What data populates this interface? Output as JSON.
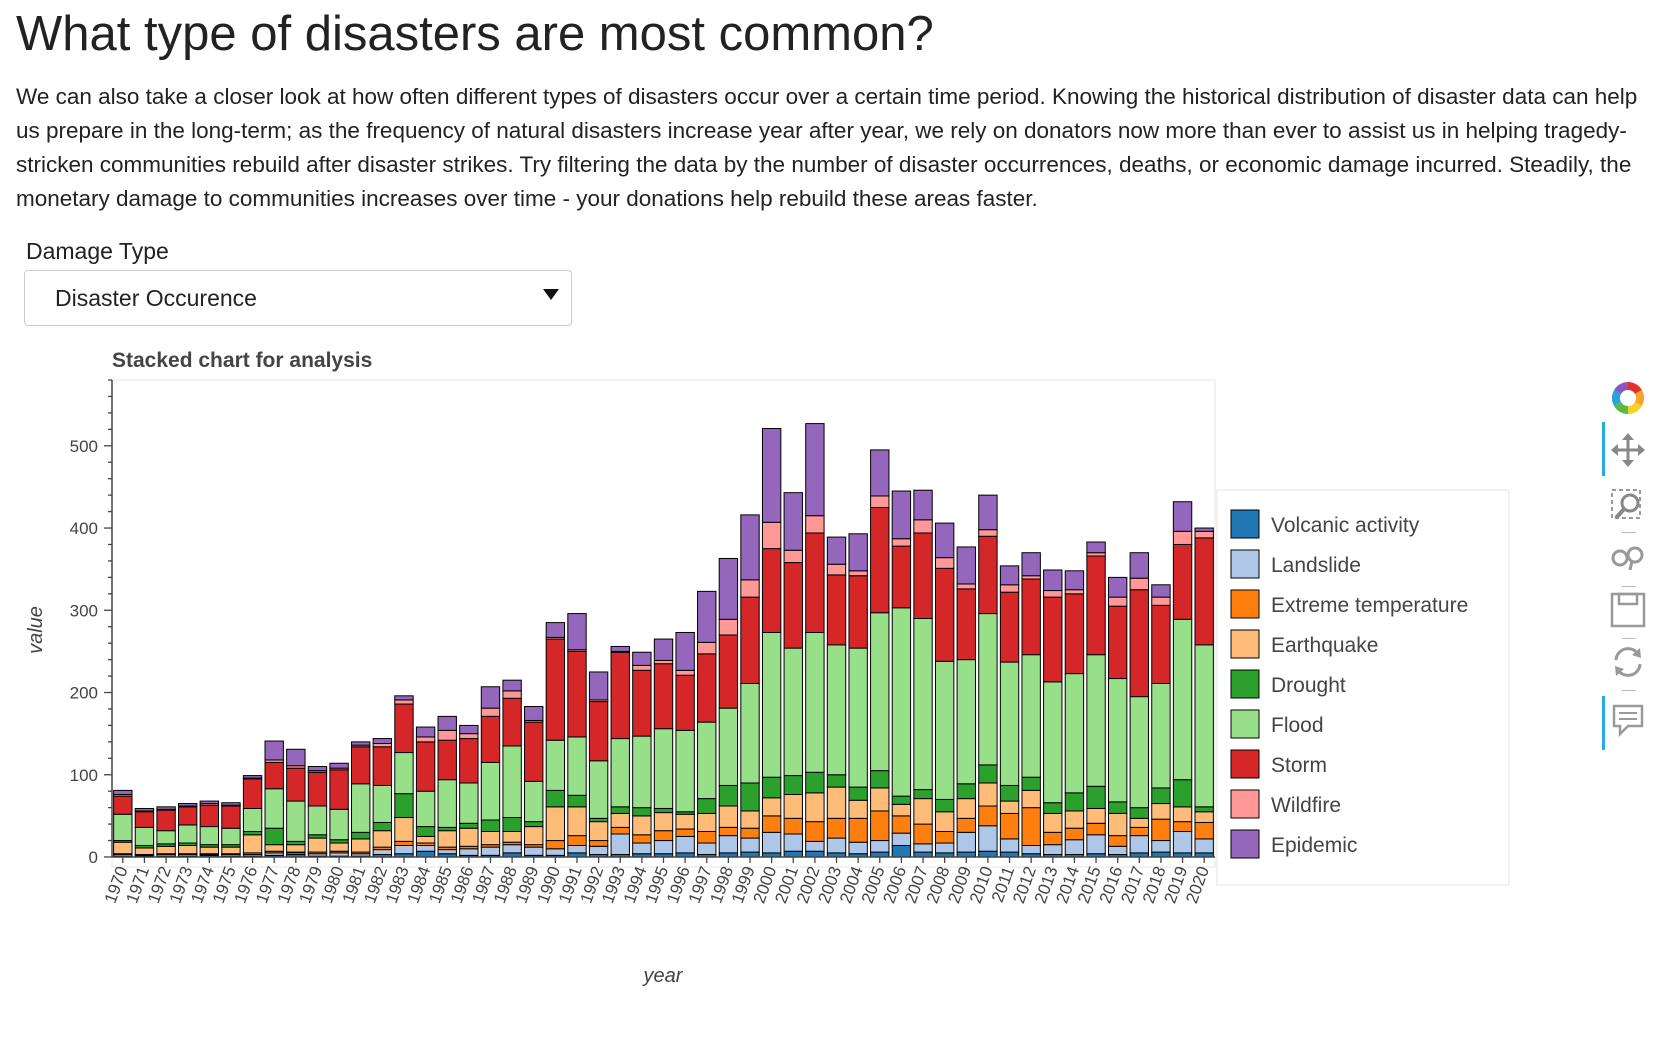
{
  "page": {
    "title": "What type of disasters are most common?",
    "intro": "We can also take a closer look at how often different types of disasters occur over a certain time period. Knowing the historical distribution of disaster data can help us prepare in the long-term; as the frequency of natural disasters increase year after year, we rely on donators now more than ever to assist us in helping tragedy-stricken communities rebuild after disaster strikes. Try filtering the data by the number of disaster occurrences, deaths, or economic damage incurred. Steadily, the monetary damage to communities increases over time - your donations help rebuild these areas faster."
  },
  "filter": {
    "label": "Damage Type",
    "selected": "Disaster Occurence"
  },
  "toolbar": {
    "tools": [
      "bokeh-logo-icon",
      "pan-icon",
      "box-zoom-icon",
      "wheel-zoom-icon",
      "save-icon",
      "reset-icon",
      "hover-icon"
    ]
  },
  "chart_data": {
    "type": "bar",
    "stacked": true,
    "title": "Stacked chart for analysis",
    "xlabel": "year",
    "ylabel": "value",
    "ylim": [
      0,
      580
    ],
    "yticks": [
      0,
      100,
      200,
      300,
      400,
      500
    ],
    "grid": false,
    "legend_position": "right",
    "categories": [
      "1970",
      "1971",
      "1972",
      "1973",
      "1974",
      "1975",
      "1976",
      "1977",
      "1978",
      "1979",
      "1980",
      "1981",
      "1982",
      "1983",
      "1984",
      "1985",
      "1986",
      "1987",
      "1988",
      "1989",
      "1990",
      "1991",
      "1992",
      "1993",
      "1994",
      "1995",
      "1996",
      "1997",
      "1998",
      "1999",
      "2000",
      "2001",
      "2002",
      "2003",
      "2004",
      "2005",
      "2006",
      "2007",
      "2008",
      "2009",
      "2010",
      "2011",
      "2012",
      "2013",
      "2014",
      "2015",
      "2016",
      "2017",
      "2018",
      "2019",
      "2020"
    ],
    "series": [
      {
        "name": "Volcanic activity",
        "color": "#1f77b4",
        "values": [
          1,
          1,
          1,
          1,
          2,
          1,
          1,
          2,
          3,
          1,
          1,
          1,
          3,
          4,
          7,
          4,
          2,
          2,
          5,
          2,
          2,
          5,
          3,
          3,
          4,
          4,
          5,
          3,
          5,
          6,
          5,
          7,
          7,
          5,
          4,
          6,
          14,
          6,
          5,
          6,
          7,
          6,
          4,
          3,
          3,
          4,
          3,
          5,
          6,
          5,
          5
        ]
      },
      {
        "name": "Landslide",
        "color": "#aec7e8",
        "values": [
          2,
          1,
          2,
          2,
          1,
          2,
          2,
          3,
          2,
          3,
          4,
          3,
          6,
          10,
          7,
          5,
          8,
          10,
          10,
          10,
          8,
          9,
          10,
          25,
          13,
          16,
          20,
          14,
          21,
          17,
          25,
          21,
          12,
          18,
          14,
          14,
          15,
          10,
          12,
          24,
          31,
          16,
          10,
          12,
          18,
          23,
          10,
          21,
          14,
          26,
          17
        ]
      },
      {
        "name": "Extreme temperature",
        "color": "#ff7f0e",
        "values": [
          1,
          1,
          1,
          1,
          1,
          1,
          2,
          2,
          1,
          2,
          2,
          2,
          3,
          5,
          3,
          3,
          3,
          3,
          3,
          3,
          10,
          12,
          7,
          8,
          10,
          12,
          9,
          14,
          10,
          12,
          20,
          19,
          24,
          24,
          29,
          36,
          21,
          24,
          14,
          17,
          24,
          31,
          46,
          15,
          14,
          14,
          13,
          10,
          26,
          12,
          20
        ]
      },
      {
        "name": "Earthquake",
        "color": "#ffbb78",
        "values": [
          14,
          8,
          9,
          10,
          8,
          8,
          22,
          8,
          9,
          17,
          10,
          16,
          20,
          29,
          8,
          20,
          22,
          16,
          13,
          22,
          41,
          35,
          23,
          17,
          23,
          22,
          18,
          22,
          26,
          21,
          22,
          29,
          35,
          38,
          22,
          28,
          14,
          31,
          24,
          24,
          28,
          15,
          21,
          23,
          21,
          18,
          27,
          11,
          19,
          18,
          13
        ]
      },
      {
        "name": "Drought",
        "color": "#2ca02c",
        "values": [
          2,
          3,
          3,
          3,
          3,
          3,
          4,
          20,
          4,
          4,
          4,
          8,
          10,
          29,
          12,
          4,
          6,
          14,
          17,
          6,
          20,
          14,
          4,
          8,
          10,
          5,
          3,
          18,
          25,
          34,
          25,
          23,
          25,
          15,
          16,
          21,
          10,
          11,
          15,
          18,
          22,
          19,
          16,
          13,
          22,
          27,
          14,
          13,
          19,
          33,
          6
        ]
      },
      {
        "name": "Flood",
        "color": "#98df8a",
        "values": [
          32,
          22,
          16,
          22,
          22,
          20,
          28,
          48,
          49,
          35,
          37,
          59,
          45,
          50,
          43,
          58,
          49,
          70,
          87,
          49,
          61,
          71,
          70,
          83,
          87,
          97,
          99,
          93,
          94,
          121,
          176,
          155,
          170,
          158,
          169,
          192,
          229,
          208,
          168,
          151,
          184,
          150,
          149,
          147,
          145,
          160,
          150,
          135,
          127,
          195,
          197
        ]
      },
      {
        "name": "Storm",
        "color": "#d62728",
        "values": [
          22,
          19,
          25,
          22,
          26,
          27,
          36,
          32,
          40,
          41,
          48,
          45,
          47,
          59,
          60,
          48,
          54,
          56,
          58,
          72,
          123,
          104,
          72,
          105,
          80,
          79,
          67,
          83,
          89,
          105,
          102,
          104,
          121,
          85,
          88,
          128,
          75,
          104,
          113,
          86,
          94,
          85,
          92,
          103,
          97,
          120,
          88,
          130,
          95,
          91,
          130
        ]
      },
      {
        "name": "Wildfire",
        "color": "#ff9896",
        "values": [
          2,
          1,
          1,
          1,
          2,
          1,
          1,
          3,
          3,
          2,
          2,
          2,
          4,
          5,
          6,
          12,
          6,
          10,
          9,
          2,
          2,
          2,
          2,
          1,
          6,
          4,
          6,
          14,
          19,
          21,
          32,
          15,
          21,
          13,
          6,
          14,
          9,
          16,
          13,
          6,
          8,
          9,
          4,
          8,
          5,
          4,
          11,
          14,
          10,
          16,
          8
        ]
      },
      {
        "name": "Epidemic",
        "color": "#9467bd",
        "values": [
          5,
          3,
          3,
          3,
          3,
          3,
          3,
          23,
          20,
          5,
          6,
          4,
          6,
          5,
          12,
          17,
          10,
          26,
          13,
          17,
          18,
          44,
          34,
          6,
          16,
          26,
          46,
          62,
          74,
          79,
          114,
          70,
          112,
          33,
          45,
          56,
          58,
          36,
          42,
          45,
          42,
          23,
          28,
          25,
          23,
          13,
          24,
          31,
          15,
          36,
          4
        ]
      }
    ]
  }
}
